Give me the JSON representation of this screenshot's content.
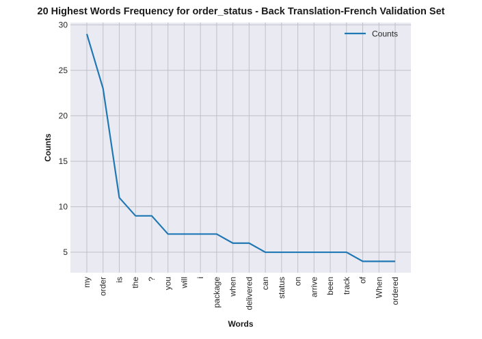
{
  "chart_data": {
    "type": "line",
    "title": "20 Highest Words Frequency for order_status - Back Translation-French Validation Set",
    "xlabel": "Words",
    "ylabel": "Counts",
    "categories": [
      "my",
      "order",
      "is",
      "the",
      "?",
      "you",
      "will",
      "i",
      "package",
      "when",
      "delivered",
      "can",
      "status",
      "on",
      "arrive",
      "been",
      "track",
      "of",
      "When",
      "ordered"
    ],
    "series": [
      {
        "name": "Counts",
        "values": [
          29,
          23,
          11,
          9,
          9,
          7,
          7,
          7,
          7,
          6,
          6,
          5,
          5,
          5,
          5,
          5,
          5,
          4,
          4,
          4
        ]
      }
    ],
    "ylim": [
      2.75,
      30.25
    ],
    "yticks": [
      5,
      10,
      15,
      20,
      25,
      30
    ],
    "grid": true,
    "legend_position": "top-right",
    "colors": {
      "line": "#1f77b4",
      "plot_bg": "#eaeaf2",
      "grid": "#c0c0c8"
    }
  }
}
